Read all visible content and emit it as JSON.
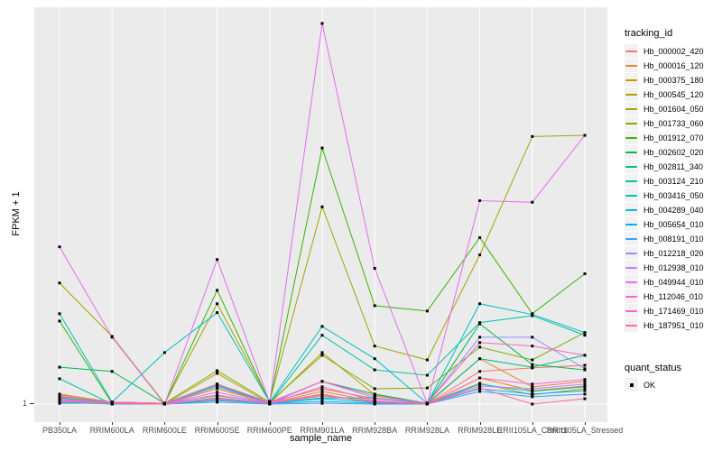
{
  "figure": {
    "background": "#FFFFFF",
    "panel_background": "#EBEBEB",
    "gridline_color": "#FFFFFF",
    "point_color": "#000000",
    "axis_text_color": "#4D4D4D"
  },
  "chart_data": {
    "type": "line",
    "title": "",
    "xlabel": "sample_name",
    "ylabel": "FPKM + 1",
    "x_categories": [
      "PB350LA",
      "RRIM600LA",
      "RRIM600LE",
      "RRIM600SE",
      "RRIM600PE",
      "RRIM901LA",
      "RRIM928BA",
      "RRIM928LA",
      "RRIM928LE",
      "RRII105LA_Control",
      "RRII105LA_Stressed"
    ],
    "ytick_labels": [
      "1"
    ],
    "ylim": [
      1,
      100
    ],
    "grid": "vertical major lines per category, horizontal line at y=1",
    "legend_position": "right",
    "legend_titles": {
      "series": "tracking_id",
      "points": "quant_status"
    },
    "point_legend": {
      "label": "OK",
      "marker": "black-square"
    },
    "series": [
      {
        "name": "Hb_000002_420",
        "color": "#F8766D",
        "values": [
          3.1,
          1.2,
          1.0,
          2.2,
          1.2,
          4.3,
          1.7,
          1.0,
          9.5,
          10.4,
          11.1
        ]
      },
      {
        "name": "Hb_000016_120",
        "color": "#EA8331",
        "values": [
          3.6,
          1.5,
          1.2,
          3.1,
          1.5,
          5.0,
          2.4,
          1.2,
          12.8,
          5.5,
          6.9
        ]
      },
      {
        "name": "Hb_000375_180",
        "color": "#D89000",
        "values": [
          2.4,
          1.0,
          1.0,
          5.0,
          1.2,
          3.6,
          1.2,
          1.0,
          7.8,
          4.5,
          5.7
        ]
      },
      {
        "name": "Hb_000545_120",
        "color": "#C09B00",
        "values": [
          1.7,
          1.2,
          1.0,
          9.0,
          1.2,
          14.4,
          3.4,
          1.2,
          6.4,
          3.4,
          5.0
        ]
      },
      {
        "name": "Hb_001604_050",
        "color": "#A3A500",
        "values": [
          32.5,
          18.6,
          1.2,
          27.1,
          1.7,
          52.3,
          16.1,
          12.5,
          39.8,
          70.6,
          70.9
        ]
      },
      {
        "name": "Hb_001733_060",
        "color": "#7CAE00",
        "values": [
          2.9,
          1.5,
          1.2,
          9.7,
          1.5,
          13.7,
          5.0,
          5.2,
          15.8,
          12.5,
          19.6
        ]
      },
      {
        "name": "Hb_001912_070",
        "color": "#39B600",
        "values": [
          22.6,
          1.2,
          1.2,
          30.6,
          1.5,
          67.6,
          26.6,
          25.2,
          44.3,
          24.5,
          34.9
        ]
      },
      {
        "name": "Hb_002602_020",
        "color": "#00BB4E",
        "values": [
          10.6,
          9.5,
          1.2,
          6.2,
          1.2,
          6.9,
          3.6,
          1.2,
          21.9,
          11.3,
          9.9
        ]
      },
      {
        "name": "Hb_002811_340",
        "color": "#00BF7D",
        "values": [
          1.2,
          1.2,
          1.0,
          5.5,
          1.2,
          2.6,
          2.6,
          1.0,
          12.8,
          10.6,
          13.7
        ]
      },
      {
        "name": "Hb_003124_210",
        "color": "#00C1A3",
        "values": [
          7.6,
          1.0,
          1.2,
          5.9,
          1.2,
          18.9,
          9.9,
          8.5,
          22.2,
          24.0,
          18.9
        ]
      },
      {
        "name": "Hb_003416_050",
        "color": "#00BFC4",
        "values": [
          24.5,
          1.5,
          14.4,
          24.8,
          1.5,
          21.2,
          12.8,
          1.2,
          27.1,
          24.3,
          19.6
        ]
      },
      {
        "name": "Hb_004289_040",
        "color": "#00BAE0",
        "values": [
          1.9,
          1.2,
          1.0,
          2.6,
          1.2,
          2.4,
          1.5,
          1.0,
          6.2,
          4.3,
          5.5
        ]
      },
      {
        "name": "Hb_005654_010",
        "color": "#00B0F6",
        "values": [
          2.6,
          1.2,
          1.0,
          1.9,
          1.2,
          1.7,
          1.2,
          1.0,
          5.0,
          3.6,
          4.5
        ]
      },
      {
        "name": "Hb_008191_010",
        "color": "#35A2FF",
        "values": [
          1.5,
          1.0,
          1.0,
          1.5,
          1.0,
          1.2,
          1.0,
          1.0,
          4.3,
          2.9,
          3.6
        ]
      },
      {
        "name": "Hb_012218_020",
        "color": "#9590FF",
        "values": [
          2.4,
          1.2,
          1.0,
          5.5,
          1.2,
          6.9,
          2.6,
          1.2,
          18.4,
          18.4,
          10.2
        ]
      },
      {
        "name": "Hb_012938_010",
        "color": "#C77CFF",
        "values": [
          1.7,
          1.2,
          1.0,
          3.4,
          1.2,
          3.1,
          1.7,
          1.0,
          5.7,
          5.0,
          6.2
        ]
      },
      {
        "name": "Hb_049944_010",
        "color": "#E76BF3",
        "values": [
          41.9,
          18.4,
          1.0,
          38.6,
          1.5,
          100.0,
          36.3,
          1.2,
          53.9,
          53.5,
          70.9
        ]
      },
      {
        "name": "Hb_112046_010",
        "color": "#FA62DB",
        "values": [
          2.2,
          1.2,
          1.0,
          4.1,
          1.2,
          5.5,
          1.9,
          1.0,
          7.8,
          6.2,
          7.4
        ]
      },
      {
        "name": "Hb_171469_010",
        "color": "#FF62BC",
        "values": [
          3.4,
          1.5,
          1.2,
          6.2,
          1.5,
          6.9,
          3.1,
          1.2,
          17.0,
          16.1,
          13.7
        ]
      },
      {
        "name": "Hb_187951_010",
        "color": "#FF6A98",
        "values": [
          1.9,
          1.2,
          1.0,
          2.4,
          1.2,
          3.4,
          1.5,
          1.0,
          5.2,
          1.0,
          2.4
        ]
      }
    ]
  }
}
